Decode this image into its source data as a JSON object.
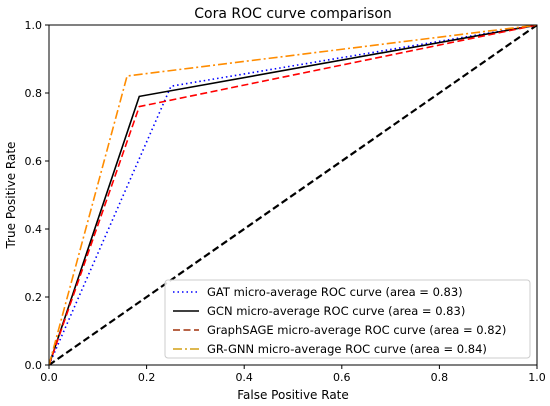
{
  "chart_data": {
    "type": "line",
    "title": "Cora ROC curve comparison",
    "xlabel": "False Positive Rate",
    "ylabel": "True Positive Rate",
    "xlim": [
      0.0,
      1.0
    ],
    "ylim": [
      0.0,
      1.0
    ],
    "x_ticks": [
      "0.0",
      "0.2",
      "0.4",
      "0.6",
      "0.8",
      "1.0"
    ],
    "y_ticks": [
      "0.0",
      "0.2",
      "0.4",
      "0.6",
      "0.8",
      "1.0"
    ],
    "grid": false,
    "legend_position": "lower-right",
    "series": [
      {
        "name": "GAT micro-average ROC curve (area = 0.83)",
        "color": "#0000ff",
        "dash": "dotted",
        "points": [
          [
            0.0,
            0.0
          ],
          [
            0.25,
            0.82
          ],
          [
            1.0,
            1.0
          ]
        ]
      },
      {
        "name": "GCN micro-average ROC curve (area = 0.83)",
        "color": "#000000",
        "dash": "solid",
        "points": [
          [
            0.0,
            0.0
          ],
          [
            0.185,
            0.79
          ],
          [
            1.0,
            1.0
          ]
        ]
      },
      {
        "name": "GraphSAGE micro-average ROC curve (area = 0.82)",
        "color": "#ff0000",
        "legend_color": "#a0300a",
        "dash": "dashed",
        "points": [
          [
            0.0,
            0.0
          ],
          [
            0.185,
            0.76
          ],
          [
            1.0,
            1.0
          ]
        ]
      },
      {
        "name": "GR-GNN micro-average ROC curve (area = 0.84)",
        "color": "#ff8c00",
        "legend_color": "#d4a017",
        "dash": "dashdot",
        "points": [
          [
            0.0,
            0.0
          ],
          [
            0.16,
            0.85
          ],
          [
            1.0,
            1.0
          ]
        ]
      }
    ],
    "reference_line": {
      "color": "#000000",
      "dash": "dashed",
      "points": [
        [
          0.0,
          0.0
        ],
        [
          1.0,
          1.0
        ]
      ]
    }
  }
}
